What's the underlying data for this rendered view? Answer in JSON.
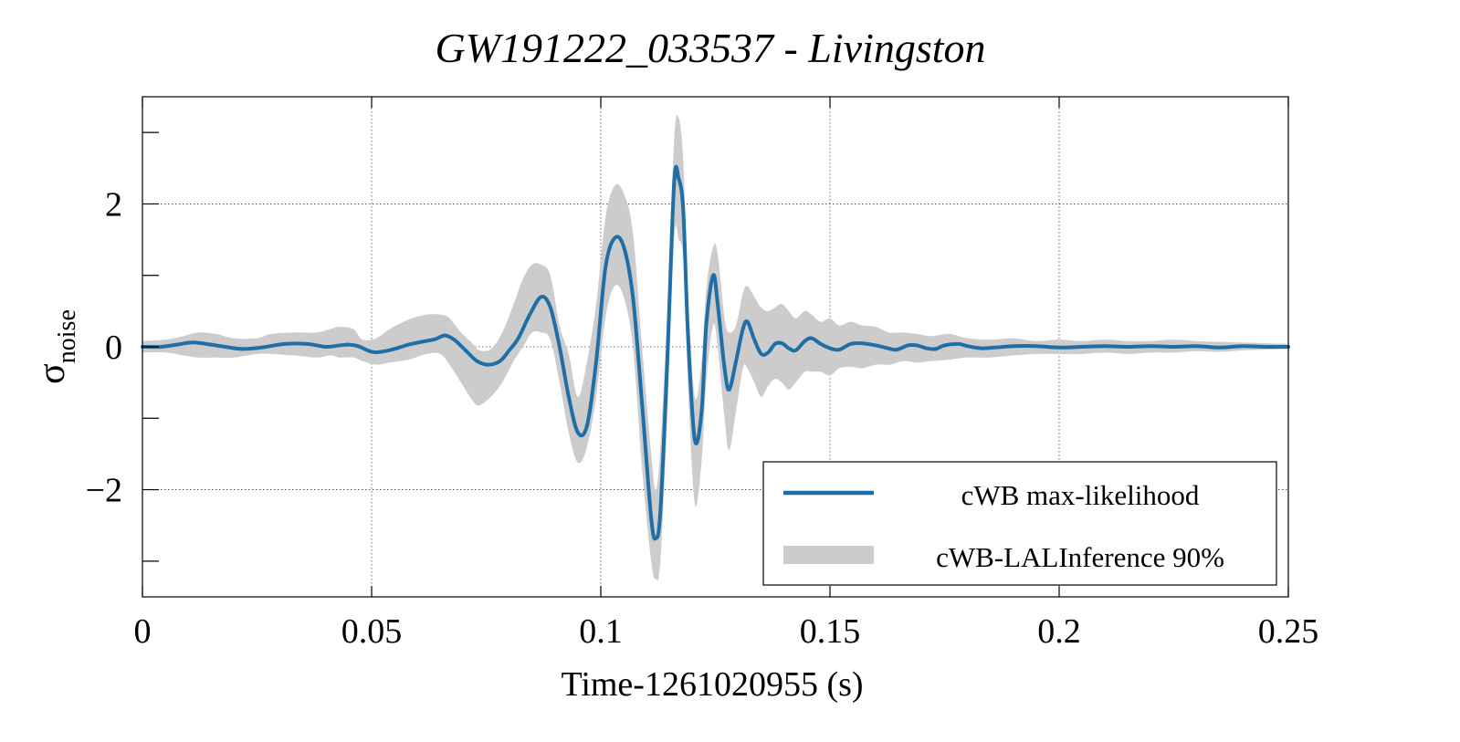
{
  "chart_data": {
    "type": "line",
    "title": "GW191222_033537 - Livingston",
    "xlabel": "Time-1261020955 (s)",
    "ylabel_main": "σ",
    "ylabel_sub": "noise",
    "xlim": [
      0,
      0.25
    ],
    "ylim": [
      -3.5,
      3.5
    ],
    "x_ticks": [
      0,
      0.05,
      0.1,
      0.15,
      0.2,
      0.25
    ],
    "x_tick_labels": [
      "0",
      "0.05",
      "0.1",
      "0.15",
      "0.2",
      "0.25"
    ],
    "y_ticks": [
      -2,
      0,
      2
    ],
    "y_tick_labels": [
      "−2",
      "0",
      "2"
    ],
    "y_minor_ticks": [
      -3,
      -1,
      1,
      3
    ],
    "grid": true,
    "legend_position": "bottom-right",
    "series": [
      {
        "name": "cWB max-likelihood",
        "kind": "line",
        "color": "#1f6fa6",
        "points": [
          [
            0.0,
            0.0
          ],
          [
            0.004,
            0.0
          ],
          [
            0.0075,
            0.03
          ],
          [
            0.011,
            0.06
          ],
          [
            0.015,
            0.03
          ],
          [
            0.019,
            -0.01
          ],
          [
            0.022,
            -0.03
          ],
          [
            0.026,
            -0.01
          ],
          [
            0.031,
            0.04
          ],
          [
            0.036,
            0.04
          ],
          [
            0.04,
            0.0
          ],
          [
            0.043,
            0.02
          ],
          [
            0.045,
            0.03
          ],
          [
            0.047,
            0.01
          ],
          [
            0.05,
            -0.07
          ],
          [
            0.052,
            -0.07
          ],
          [
            0.055,
            -0.03
          ],
          [
            0.058,
            0.03
          ],
          [
            0.061,
            0.07
          ],
          [
            0.064,
            0.11
          ],
          [
            0.066,
            0.16
          ],
          [
            0.068,
            0.1
          ],
          [
            0.0705,
            -0.05
          ],
          [
            0.073,
            -0.2
          ],
          [
            0.0755,
            -0.25
          ],
          [
            0.078,
            -0.2
          ],
          [
            0.08,
            -0.05
          ],
          [
            0.082,
            0.12
          ],
          [
            0.0845,
            0.45
          ],
          [
            0.087,
            0.7
          ],
          [
            0.089,
            0.55
          ],
          [
            0.091,
            0.0
          ],
          [
            0.093,
            -0.7
          ],
          [
            0.095,
            -1.2
          ],
          [
            0.097,
            -1.1
          ],
          [
            0.099,
            -0.2
          ],
          [
            0.101,
            1.1
          ],
          [
            0.103,
            1.52
          ],
          [
            0.105,
            1.4
          ],
          [
            0.107,
            0.7
          ],
          [
            0.109,
            -0.8
          ],
          [
            0.111,
            -2.4
          ],
          [
            0.112,
            -2.68
          ],
          [
            0.113,
            -2.3
          ],
          [
            0.1145,
            -0.2
          ],
          [
            0.116,
            2.3
          ],
          [
            0.117,
            2.35
          ],
          [
            0.118,
            1.9
          ],
          [
            0.119,
            0.2
          ],
          [
            0.1205,
            -1.3
          ],
          [
            0.122,
            -0.9
          ],
          [
            0.123,
            0.3
          ],
          [
            0.1245,
            1.0
          ],
          [
            0.1255,
            0.6
          ],
          [
            0.127,
            -0.3
          ],
          [
            0.128,
            -0.6
          ],
          [
            0.1295,
            -0.2
          ],
          [
            0.131,
            0.25
          ],
          [
            0.132,
            0.35
          ],
          [
            0.1335,
            0.1
          ],
          [
            0.135,
            -0.1
          ],
          [
            0.1365,
            -0.08
          ],
          [
            0.138,
            0.04
          ],
          [
            0.1395,
            0.05
          ],
          [
            0.141,
            -0.02
          ],
          [
            0.1425,
            -0.05
          ],
          [
            0.1445,
            0.08
          ],
          [
            0.146,
            0.12
          ],
          [
            0.148,
            0.04
          ],
          [
            0.15,
            -0.02
          ],
          [
            0.152,
            -0.04
          ],
          [
            0.1545,
            0.04
          ],
          [
            0.157,
            0.05
          ],
          [
            0.16,
            0.02
          ],
          [
            0.162,
            -0.01
          ],
          [
            0.1645,
            -0.04
          ],
          [
            0.167,
            0.02
          ],
          [
            0.169,
            0.02
          ],
          [
            0.171,
            -0.02
          ],
          [
            0.173,
            -0.03
          ],
          [
            0.175,
            0.02
          ],
          [
            0.178,
            0.04
          ],
          [
            0.18,
            0.01
          ],
          [
            0.183,
            -0.02
          ],
          [
            0.186,
            -0.01
          ],
          [
            0.19,
            0.01
          ],
          [
            0.195,
            0.01
          ],
          [
            0.2,
            -0.01
          ],
          [
            0.205,
            0.0
          ],
          [
            0.21,
            0.01
          ],
          [
            0.215,
            0.0
          ],
          [
            0.22,
            0.01
          ],
          [
            0.225,
            0.0
          ],
          [
            0.23,
            0.01
          ],
          [
            0.235,
            -0.01
          ],
          [
            0.24,
            0.01
          ],
          [
            0.245,
            0.0
          ],
          [
            0.25,
            0.0
          ]
        ]
      },
      {
        "name": "cWB-LALInference 90%",
        "kind": "band",
        "color": "#cccccc",
        "points": [
          [
            0.0,
            0.08,
            -0.08
          ],
          [
            0.005,
            0.1,
            -0.08
          ],
          [
            0.009,
            0.15,
            -0.12
          ],
          [
            0.012,
            0.2,
            -0.15
          ],
          [
            0.016,
            0.18,
            -0.15
          ],
          [
            0.02,
            0.12,
            -0.15
          ],
          [
            0.025,
            0.12,
            -0.1
          ],
          [
            0.028,
            0.18,
            -0.1
          ],
          [
            0.033,
            0.2,
            -0.12
          ],
          [
            0.038,
            0.2,
            -0.15
          ],
          [
            0.041,
            0.25,
            -0.12
          ],
          [
            0.043,
            0.28,
            -0.15
          ],
          [
            0.046,
            0.25,
            -0.15
          ],
          [
            0.048,
            0.1,
            -0.2
          ],
          [
            0.051,
            0.12,
            -0.25
          ],
          [
            0.054,
            0.25,
            -0.22
          ],
          [
            0.058,
            0.38,
            -0.18
          ],
          [
            0.062,
            0.45,
            -0.1
          ],
          [
            0.065,
            0.45,
            -0.1
          ],
          [
            0.067,
            0.4,
            -0.25
          ],
          [
            0.0695,
            0.2,
            -0.5
          ],
          [
            0.072,
            0.05,
            -0.75
          ],
          [
            0.0735,
            -0.05,
            -0.82
          ],
          [
            0.076,
            -0.03,
            -0.7
          ],
          [
            0.0785,
            0.2,
            -0.5
          ],
          [
            0.081,
            0.6,
            -0.2
          ],
          [
            0.083,
            0.95,
            0.0
          ],
          [
            0.085,
            1.15,
            0.2
          ],
          [
            0.087,
            1.15,
            0.2
          ],
          [
            0.089,
            1.0,
            0.1
          ],
          [
            0.091,
            0.3,
            -0.5
          ],
          [
            0.093,
            -0.1,
            -1.2
          ],
          [
            0.095,
            -0.7,
            -1.62
          ],
          [
            0.097,
            -0.2,
            -1.4
          ],
          [
            0.099,
            0.6,
            -0.7
          ],
          [
            0.101,
            1.8,
            0.4
          ],
          [
            0.103,
            2.25,
            0.85
          ],
          [
            0.105,
            2.15,
            0.7
          ],
          [
            0.107,
            1.6,
            0.0
          ],
          [
            0.109,
            0.0,
            -1.7
          ],
          [
            0.111,
            -1.5,
            -3.0
          ],
          [
            0.112,
            -2.0,
            -3.25
          ],
          [
            0.113,
            -1.4,
            -3.0
          ],
          [
            0.1145,
            0.5,
            -1.0
          ],
          [
            0.116,
            2.9,
            1.5
          ],
          [
            0.117,
            3.2,
            1.5
          ],
          [
            0.118,
            2.6,
            1.2
          ],
          [
            0.119,
            0.8,
            -0.5
          ],
          [
            0.1205,
            -0.7,
            -2.2
          ],
          [
            0.122,
            -0.2,
            -1.6
          ],
          [
            0.123,
            0.8,
            -0.5
          ],
          [
            0.1245,
            1.4,
            0.3
          ],
          [
            0.1255,
            1.3,
            0.0
          ],
          [
            0.127,
            0.4,
            -1.0
          ],
          [
            0.128,
            0.2,
            -1.45
          ],
          [
            0.1295,
            0.3,
            -0.9
          ],
          [
            0.131,
            0.75,
            -0.3
          ],
          [
            0.132,
            0.85,
            -0.3
          ],
          [
            0.1335,
            0.7,
            -0.5
          ],
          [
            0.135,
            0.55,
            -0.7
          ],
          [
            0.1365,
            0.5,
            -0.55
          ],
          [
            0.138,
            0.55,
            -0.45
          ],
          [
            0.1395,
            0.6,
            -0.5
          ],
          [
            0.141,
            0.5,
            -0.6
          ],
          [
            0.1425,
            0.4,
            -0.5
          ],
          [
            0.1445,
            0.5,
            -0.35
          ],
          [
            0.146,
            0.45,
            -0.35
          ],
          [
            0.148,
            0.35,
            -0.35
          ],
          [
            0.15,
            0.4,
            -0.4
          ],
          [
            0.152,
            0.3,
            -0.3
          ],
          [
            0.1545,
            0.35,
            -0.28
          ],
          [
            0.157,
            0.3,
            -0.3
          ],
          [
            0.16,
            0.28,
            -0.25
          ],
          [
            0.163,
            0.2,
            -0.25
          ],
          [
            0.166,
            0.2,
            -0.2
          ],
          [
            0.169,
            0.18,
            -0.22
          ],
          [
            0.172,
            0.15,
            -0.2
          ],
          [
            0.176,
            0.18,
            -0.18
          ],
          [
            0.18,
            0.12,
            -0.15
          ],
          [
            0.185,
            0.1,
            -0.15
          ],
          [
            0.19,
            0.12,
            -0.12
          ],
          [
            0.195,
            0.08,
            -0.1
          ],
          [
            0.2,
            0.1,
            -0.1
          ],
          [
            0.205,
            0.08,
            -0.1
          ],
          [
            0.21,
            0.1,
            -0.08
          ],
          [
            0.215,
            0.08,
            -0.1
          ],
          [
            0.22,
            0.08,
            -0.08
          ],
          [
            0.225,
            0.1,
            -0.08
          ],
          [
            0.23,
            0.08,
            -0.06
          ],
          [
            0.235,
            0.07,
            -0.07
          ],
          [
            0.24,
            0.06,
            -0.05
          ],
          [
            0.245,
            0.05,
            -0.04
          ],
          [
            0.25,
            0.04,
            -0.03
          ]
        ]
      }
    ]
  }
}
